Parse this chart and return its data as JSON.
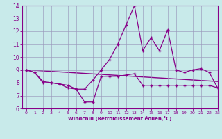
{
  "line1_x": [
    0,
    1,
    2,
    3,
    4,
    5,
    6,
    7,
    8,
    9,
    10,
    11,
    12,
    13,
    14,
    15,
    16,
    17,
    18,
    19,
    20,
    21,
    22,
    23
  ],
  "line1_y": [
    9.0,
    8.8,
    8.0,
    8.0,
    7.9,
    7.8,
    7.5,
    7.5,
    8.2,
    9.0,
    9.8,
    11.0,
    12.5,
    14.0,
    10.5,
    11.5,
    10.5,
    12.1,
    9.0,
    8.8,
    9.0,
    9.1,
    8.8,
    7.6
  ],
  "line2_x": [
    0,
    1,
    2,
    3,
    4,
    5,
    6,
    7,
    8,
    9,
    10,
    11,
    12,
    13,
    14,
    15,
    16,
    17,
    18,
    19,
    20,
    21,
    22,
    23
  ],
  "line2_y": [
    9.0,
    8.8,
    8.1,
    8.0,
    7.9,
    7.6,
    7.5,
    6.5,
    6.5,
    8.5,
    8.5,
    8.5,
    8.6,
    8.7,
    7.8,
    7.8,
    7.8,
    7.8,
    7.8,
    7.8,
    7.8,
    7.8,
    7.8,
    7.6
  ],
  "line3_x": [
    0,
    23
  ],
  "line3_y": [
    9.0,
    8.1
  ],
  "color": "#880088",
  "bg_color": "#c8eaea",
  "grid_color": "#9999bb",
  "xlabel": "Windchill (Refroidissement éolien,°C)",
  "xlim": [
    -0.5,
    23
  ],
  "ylim": [
    6,
    14
  ],
  "yticks": [
    6,
    7,
    8,
    9,
    10,
    11,
    12,
    13,
    14
  ],
  "xticks": [
    0,
    1,
    2,
    3,
    4,
    5,
    6,
    7,
    8,
    9,
    10,
    11,
    12,
    13,
    14,
    15,
    16,
    17,
    18,
    19,
    20,
    21,
    22,
    23
  ]
}
